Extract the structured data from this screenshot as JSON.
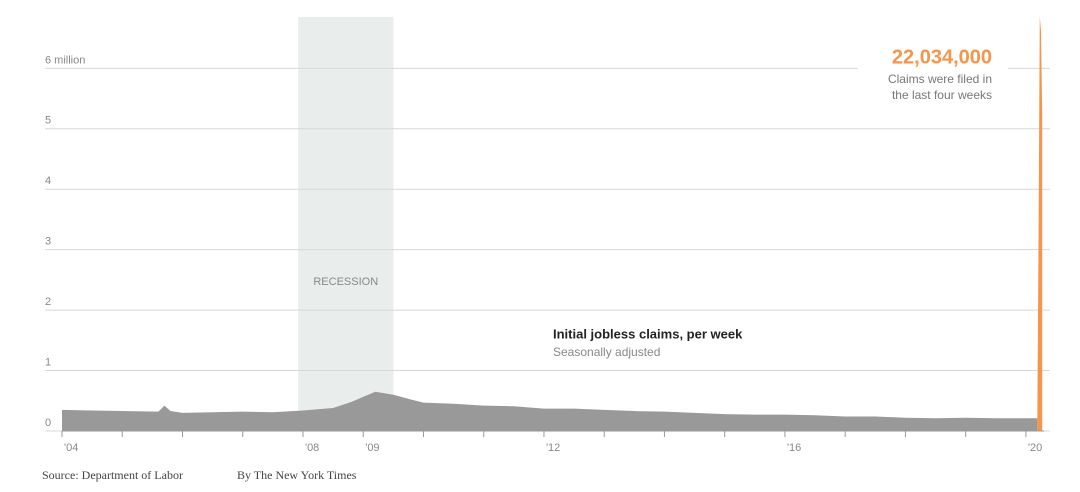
{
  "chart_data": {
    "type": "area",
    "x": [
      2004.0,
      2004.5,
      2005.0,
      2005.6,
      2005.7,
      2005.8,
      2006.0,
      2006.5,
      2007.0,
      2007.5,
      2008.0,
      2008.5,
      2008.8,
      2009.2,
      2009.5,
      2009.8,
      2010.0,
      2010.5,
      2011.0,
      2011.5,
      2012.0,
      2012.5,
      2013.0,
      2013.5,
      2014.0,
      2014.5,
      2015.0,
      2015.5,
      2016.0,
      2016.5,
      2017.0,
      2017.5,
      2018.0,
      2018.5,
      2019.0,
      2019.5,
      2020.0,
      2020.19
    ],
    "values": [
      0.35,
      0.34,
      0.33,
      0.32,
      0.42,
      0.33,
      0.3,
      0.31,
      0.32,
      0.31,
      0.34,
      0.38,
      0.48,
      0.65,
      0.6,
      0.52,
      0.47,
      0.45,
      0.42,
      0.41,
      0.37,
      0.37,
      0.35,
      0.33,
      0.32,
      0.3,
      0.28,
      0.27,
      0.27,
      0.26,
      0.24,
      0.24,
      0.22,
      0.21,
      0.22,
      0.21,
      0.21,
      0.21
    ],
    "color": "#999999",
    "highlight": {
      "x": [
        2020.19,
        2020.21,
        2020.23,
        2020.25,
        2020.27
      ],
      "values": [
        0.282,
        3.307,
        6.867,
        6.615,
        5.245
      ],
      "color": "#f5954b"
    },
    "ylim": [
      0,
      6.85
    ],
    "yticks": [
      0,
      1,
      2,
      3,
      4,
      5,
      {
        "value": 6,
        "label": "6 million"
      }
    ],
    "xlim": [
      2004,
      2020.3
    ],
    "xticks": [
      {
        "value": 2004,
        "label": "'04"
      },
      {
        "value": 2008,
        "label": "'08"
      },
      {
        "value": 2009,
        "label": "'09"
      },
      {
        "value": 2012,
        "label": "'12"
      },
      {
        "value": 2016,
        "label": "'16"
      },
      {
        "value": 2020,
        "label": "'20"
      }
    ],
    "minor_xticks": [
      2005,
      2006,
      2007,
      2010,
      2011,
      2013,
      2014,
      2015,
      2017,
      2018,
      2019
    ],
    "grid": true,
    "recession": {
      "label": "RECESSION",
      "start": 2007.92,
      "end": 2009.5,
      "color": "#e9eeed"
    },
    "annotation": {
      "total": "22,034,000",
      "lines": [
        "Claims were filed in",
        "the last four weeks"
      ]
    },
    "series_label": {
      "title": "Initial jobless claims, per week",
      "subtitle": "Seasonally adjusted"
    },
    "source": "Source: Department of Labor",
    "credit": "By The New York Times"
  }
}
